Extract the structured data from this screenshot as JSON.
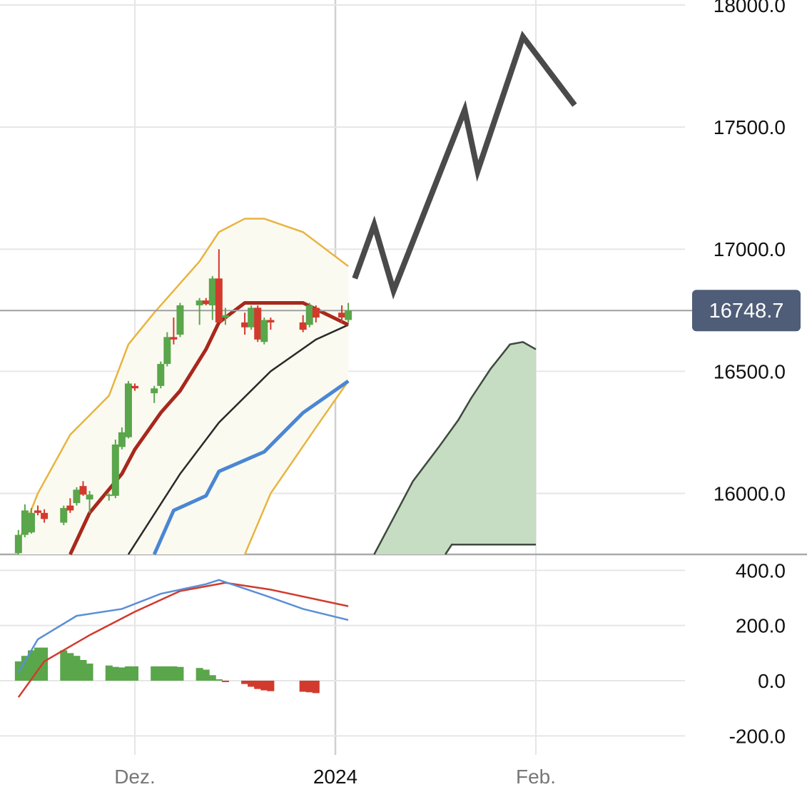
{
  "colors": {
    "up": "#5aa64b",
    "down": "#d23a2d",
    "bollinger": "#e8b440",
    "bollinger_fill": "#fbfaf1",
    "ma_fast": "#a8281d",
    "ma_mid": "#2a2a2a",
    "ma_slow": "#4a86d4",
    "forecast": "#4a4a4a",
    "cloud_fill": "#c6dcc3",
    "cloud_edge": "#3d4a3d",
    "macd_line": "#5a8fd6",
    "signal_line": "#d23a2d",
    "price_badge": "#4f5d78",
    "grid": "#e6e6e6"
  },
  "price_badge": {
    "value": "16748.7"
  },
  "chart_data": [
    {
      "type": "line",
      "panel": "price",
      "xlabels": [
        "Dez.",
        "2024",
        "Feb."
      ],
      "x_ticks": [
        "2023-12-01",
        "2024-01-01",
        "2024-02-01"
      ],
      "highlighted_xlabel": "2024",
      "ylim": [
        15750,
        18000
      ],
      "yticks": [
        16000,
        16500,
        17000,
        17500,
        18000
      ],
      "ytick_labels": [
        "16000.0",
        "16500.0",
        "17000.0",
        "17500.0",
        "18000.0"
      ],
      "last_price": 16748.7,
      "grid": true,
      "candles": [
        {
          "date": "2023-11-13",
          "open": 15755,
          "high": 15850,
          "low": 15750,
          "close": 15830
        },
        {
          "date": "2023-11-14",
          "open": 15830,
          "high": 15955,
          "low": 15820,
          "close": 15930
        },
        {
          "date": "2023-11-15",
          "open": 15840,
          "high": 15940,
          "low": 15835,
          "close": 15920
        },
        {
          "date": "2023-11-16",
          "open": 15930,
          "high": 15950,
          "low": 15910,
          "close": 15920
        },
        {
          "date": "2023-11-17",
          "open": 15920,
          "high": 15935,
          "low": 15880,
          "close": 15895
        },
        {
          "date": "2023-11-20",
          "open": 15880,
          "high": 15950,
          "low": 15870,
          "close": 15940
        },
        {
          "date": "2023-11-21",
          "open": 15950,
          "high": 15980,
          "low": 15920,
          "close": 15930
        },
        {
          "date": "2023-11-22",
          "open": 15960,
          "high": 16025,
          "low": 15950,
          "close": 16015
        },
        {
          "date": "2023-11-23",
          "open": 16030,
          "high": 16050,
          "low": 15990,
          "close": 15995
        },
        {
          "date": "2023-11-24",
          "open": 15975,
          "high": 16010,
          "low": 15920,
          "close": 15995
        },
        {
          "date": "2023-11-27",
          "open": 15990,
          "high": 16000,
          "low": 15970,
          "close": 15995
        },
        {
          "date": "2023-11-28",
          "open": 15990,
          "high": 16220,
          "low": 15980,
          "close": 16200
        },
        {
          "date": "2023-11-29",
          "open": 16190,
          "high": 16270,
          "low": 16180,
          "close": 16250
        },
        {
          "date": "2023-11-30",
          "open": 16230,
          "high": 16460,
          "low": 16225,
          "close": 16450
        },
        {
          "date": "2023-12-01",
          "open": 16440,
          "high": 16450,
          "low": 16420,
          "close": 16430
        },
        {
          "date": "2023-12-04",
          "open": 16410,
          "high": 16440,
          "low": 16370,
          "close": 16430
        },
        {
          "date": "2023-12-05",
          "open": 16440,
          "high": 16540,
          "low": 16430,
          "close": 16530
        },
        {
          "date": "2023-12-06",
          "open": 16530,
          "high": 16660,
          "low": 16520,
          "close": 16640
        },
        {
          "date": "2023-12-07",
          "open": 16640,
          "high": 16720,
          "low": 16610,
          "close": 16630
        },
        {
          "date": "2023-12-08",
          "open": 16650,
          "high": 16780,
          "low": 16640,
          "close": 16770
        },
        {
          "date": "2023-12-11",
          "open": 16770,
          "high": 16800,
          "low": 16690,
          "close": 16790
        },
        {
          "date": "2023-12-12",
          "open": 16790,
          "high": 16800,
          "low": 16770,
          "close": 16775
        },
        {
          "date": "2023-12-13",
          "open": 16770,
          "high": 16890,
          "low": 16710,
          "close": 16880
        },
        {
          "date": "2023-12-14",
          "open": 16880,
          "high": 17000,
          "low": 16710,
          "close": 16700
        },
        {
          "date": "2023-12-15",
          "open": 16720,
          "high": 16760,
          "low": 16690,
          "close": 16730
        },
        {
          "date": "2023-12-18",
          "open": 16700,
          "high": 16740,
          "low": 16650,
          "close": 16680
        },
        {
          "date": "2023-12-19",
          "open": 16680,
          "high": 16770,
          "low": 16670,
          "close": 16760
        },
        {
          "date": "2023-12-20",
          "open": 16760,
          "high": 16770,
          "low": 16620,
          "close": 16630
        },
        {
          "date": "2023-12-21",
          "open": 16620,
          "high": 16720,
          "low": 16610,
          "close": 16710
        },
        {
          "date": "2023-12-22",
          "open": 16710,
          "high": 16720,
          "low": 16670,
          "close": 16700
        },
        {
          "date": "2023-12-27",
          "open": 16700,
          "high": 16730,
          "low": 16660,
          "close": 16670
        },
        {
          "date": "2023-12-28",
          "open": 16690,
          "high": 16780,
          "low": 16680,
          "close": 16770
        },
        {
          "date": "2023-12-29",
          "open": 16760,
          "high": 16770,
          "low": 16700,
          "close": 16720
        },
        {
          "date": "2024-01-02",
          "open": 16740,
          "high": 16770,
          "low": 16700,
          "close": 16720
        },
        {
          "date": "2024-01-03",
          "open": 16710,
          "high": 16780,
          "low": 16700,
          "close": 16749
        }
      ],
      "bollinger": {
        "upper": [
          [
            "2023-11-13",
            15800
          ],
          [
            "2023-11-16",
            16000
          ],
          [
            "2023-11-21",
            16240
          ],
          [
            "2023-11-27",
            16400
          ],
          [
            "2023-11-30",
            16610
          ],
          [
            "2023-12-04",
            16740
          ],
          [
            "2023-12-07",
            16830
          ],
          [
            "2023-12-11",
            16950
          ],
          [
            "2023-12-14",
            17070
          ],
          [
            "2023-12-18",
            17125
          ],
          [
            "2023-12-21",
            17125
          ],
          [
            "2023-12-27",
            17070
          ],
          [
            "2024-01-03",
            16930
          ]
        ],
        "lower": [
          [
            "2023-12-18",
            15750
          ],
          [
            "2023-12-22",
            16000
          ],
          [
            "2023-12-29",
            16270
          ],
          [
            "2024-01-03",
            16460
          ]
        ]
      },
      "ma_fast": [
        [
          "2023-11-21",
          15750
        ],
        [
          "2023-11-24",
          15920
        ],
        [
          "2023-11-29",
          16080
        ],
        [
          "2023-12-01",
          16180
        ],
        [
          "2023-12-05",
          16330
        ],
        [
          "2023-12-08",
          16420
        ],
        [
          "2023-12-12",
          16590
        ],
        [
          "2023-12-14",
          16700
        ],
        [
          "2023-12-18",
          16780
        ],
        [
          "2023-12-21",
          16780
        ],
        [
          "2023-12-27",
          16780
        ],
        [
          "2024-01-03",
          16690
        ]
      ],
      "ma_mid": [
        [
          "2023-11-30",
          15750
        ],
        [
          "2023-12-08",
          16080
        ],
        [
          "2023-12-14",
          16290
        ],
        [
          "2023-12-22",
          16500
        ],
        [
          "2023-12-29",
          16630
        ],
        [
          "2024-01-03",
          16690
        ]
      ],
      "ma_slow": [
        [
          "2023-12-04",
          15750
        ],
        [
          "2023-12-07",
          15930
        ],
        [
          "2023-12-12",
          15990
        ],
        [
          "2023-12-14",
          16090
        ],
        [
          "2023-12-21",
          16170
        ],
        [
          "2023-12-27",
          16330
        ],
        [
          "2024-01-03",
          16460
        ]
      ],
      "forecast": [
        [
          "2024-01-04",
          16880
        ],
        [
          "2024-01-07",
          17100
        ],
        [
          "2024-01-10",
          16830
        ],
        [
          "2024-01-21",
          17570
        ],
        [
          "2024-01-23",
          17320
        ],
        [
          "2024-01-30",
          17870
        ],
        [
          "2024-02-07",
          17590
        ]
      ],
      "cloud": {
        "upper": [
          [
            "2024-01-07",
            15750
          ],
          [
            "2024-01-10",
            15900
          ],
          [
            "2024-01-13",
            16050
          ],
          [
            "2024-01-17",
            16190
          ],
          [
            "2024-01-20",
            16300
          ],
          [
            "2024-01-22",
            16390
          ],
          [
            "2024-01-25",
            16510
          ],
          [
            "2024-01-28",
            16610
          ],
          [
            "2024-01-30",
            16620
          ],
          [
            "2024-02-01",
            16590
          ]
        ],
        "lower": [
          [
            "2024-01-18",
            15750
          ],
          [
            "2024-01-19",
            15790
          ],
          [
            "2024-02-01",
            15790
          ]
        ]
      }
    },
    {
      "type": "bar",
      "panel": "macd",
      "ylim": [
        -300,
        450
      ],
      "yticks": [
        -200,
        0,
        200,
        400
      ],
      "ytick_labels": [
        "-200.0",
        "0.0",
        "200.0",
        "400.0"
      ],
      "histogram": [
        70,
        90,
        110,
        120,
        120,
        110,
        100,
        90,
        75,
        62,
        55,
        50,
        48,
        52,
        52,
        52,
        52,
        52,
        52,
        50,
        46,
        40,
        20,
        5,
        -5,
        -12,
        -22,
        -30,
        -35,
        -38,
        -40,
        -42,
        -45
      ],
      "macd": [
        [
          "2023-11-13",
          30
        ],
        [
          "2023-11-16",
          150
        ],
        [
          "2023-11-22",
          235
        ],
        [
          "2023-11-29",
          260
        ],
        [
          "2023-12-05",
          315
        ],
        [
          "2023-12-12",
          350
        ],
        [
          "2023-12-14",
          365
        ],
        [
          "2023-12-21",
          310
        ],
        [
          "2023-12-27",
          260
        ],
        [
          "2024-01-03",
          220
        ]
      ],
      "signal": [
        [
          "2023-11-13",
          -60
        ],
        [
          "2023-11-17",
          70
        ],
        [
          "2023-11-24",
          165
        ],
        [
          "2023-12-01",
          250
        ],
        [
          "2023-12-08",
          325
        ],
        [
          "2023-12-15",
          355
        ],
        [
          "2023-12-22",
          330
        ],
        [
          "2024-01-03",
          270
        ]
      ]
    }
  ]
}
